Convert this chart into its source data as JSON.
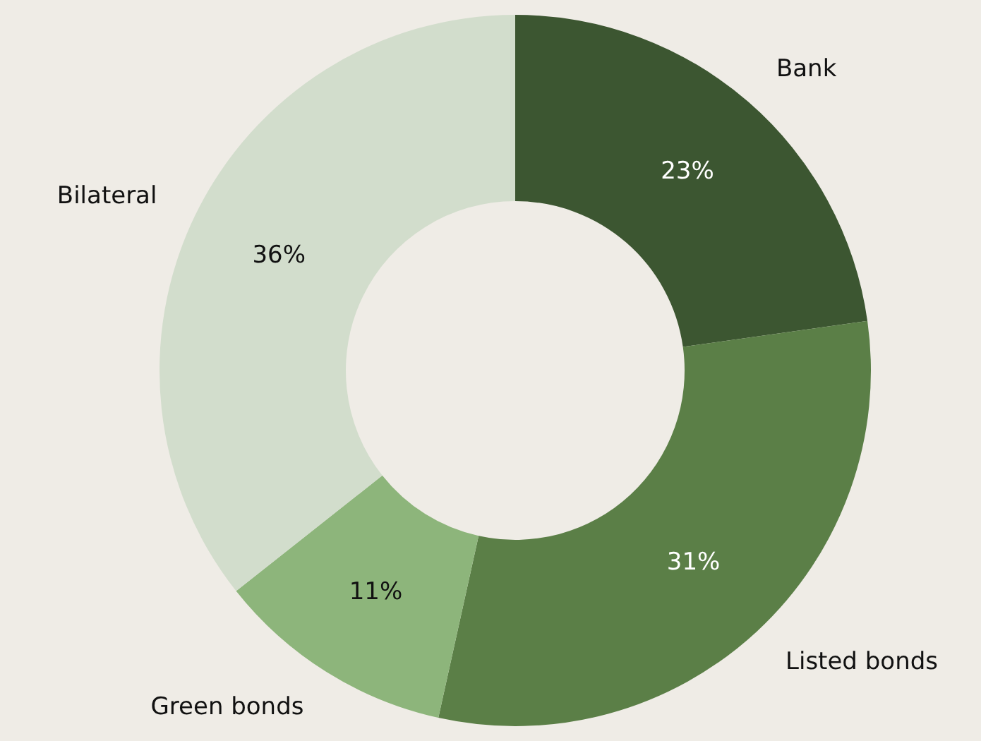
{
  "chart_data": {
    "type": "donut",
    "categories": [
      "Bank",
      "Listed bonds",
      "Green bonds",
      "Bilateral"
    ],
    "values": [
      23,
      31,
      11,
      36
    ],
    "value_labels": [
      "23%",
      "31%",
      "11%",
      "36%"
    ],
    "colors": [
      "#3c5631",
      "#5b7f47",
      "#8db57b",
      "#d2ddcc"
    ],
    "legend": false
  }
}
